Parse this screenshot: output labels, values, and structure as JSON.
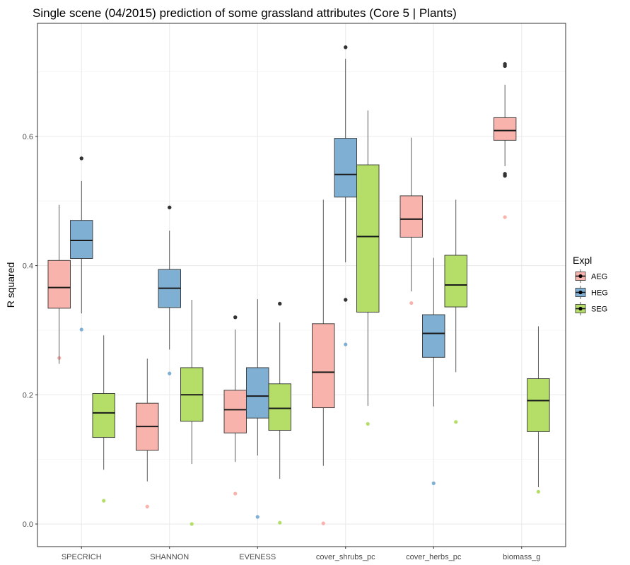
{
  "chart_data": {
    "type": "box",
    "title": "Single scene (04/2015) prediction of some grassland attributes (Core 5 | Plants)",
    "xlabel": "",
    "ylabel": "R squared",
    "ylim": [
      -0.035,
      0.775
    ],
    "yticks": [
      0.0,
      0.2,
      0.4,
      0.6
    ],
    "ytick_labels": [
      "0.0",
      "0.2",
      "0.4",
      "0.6"
    ],
    "grid": true,
    "legend": {
      "title": "Expl",
      "position": "right"
    },
    "categories": [
      "SPECRICH",
      "SHANNON",
      "EVENESS",
      "cover_shrubs_pc",
      "cover_herbs_pc",
      "biomass_g"
    ],
    "series": [
      {
        "name": "AEG",
        "color": "#F8B3AC",
        "boxes": [
          {
            "min": 0.248,
            "q1": 0.334,
            "median": 0.366,
            "q3": 0.408,
            "max": 0.494,
            "outliers": [],
            "points": [
              0.257
            ]
          },
          {
            "min": 0.066,
            "q1": 0.114,
            "median": 0.151,
            "q3": 0.187,
            "max": 0.256,
            "outliers": [],
            "points": [
              0.027
            ]
          },
          {
            "min": 0.096,
            "q1": 0.141,
            "median": 0.177,
            "q3": 0.207,
            "max": 0.301,
            "outliers": [
              0.32
            ],
            "points": [
              0.047
            ]
          },
          {
            "min": 0.09,
            "q1": 0.18,
            "median": 0.235,
            "q3": 0.31,
            "max": 0.502,
            "outliers": [],
            "points": [
              0.001
            ]
          },
          {
            "min": 0.36,
            "q1": 0.444,
            "median": 0.472,
            "q3": 0.508,
            "max": 0.598,
            "outliers": [],
            "points": [
              0.342
            ]
          },
          {
            "min": 0.554,
            "q1": 0.594,
            "median": 0.609,
            "q3": 0.629,
            "max": 0.68,
            "outliers": [
              0.709,
              0.712,
              0.539,
              0.542
            ],
            "points": [
              0.475
            ]
          }
        ]
      },
      {
        "name": "HEG",
        "color": "#7FAFD3",
        "boxes": [
          {
            "min": 0.326,
            "q1": 0.411,
            "median": 0.439,
            "q3": 0.47,
            "max": 0.531,
            "outliers": [
              0.566
            ],
            "points": [
              0.301
            ]
          },
          {
            "min": 0.27,
            "q1": 0.335,
            "median": 0.365,
            "q3": 0.394,
            "max": 0.454,
            "outliers": [
              0.49
            ],
            "points": [
              0.233
            ]
          },
          {
            "min": 0.106,
            "q1": 0.164,
            "median": 0.198,
            "q3": 0.242,
            "max": 0.348,
            "outliers": [],
            "points": [
              0.011
            ]
          },
          {
            "min": 0.405,
            "q1": 0.506,
            "median": 0.541,
            "q3": 0.597,
            "max": 0.72,
            "outliers": [
              0.738,
              0.347
            ],
            "points": [
              0.278
            ]
          },
          {
            "min": 0.182,
            "q1": 0.258,
            "median": 0.295,
            "q3": 0.324,
            "max": 0.412,
            "outliers": [],
            "points": [
              0.063
            ]
          }
        ]
      },
      {
        "name": "SEG",
        "color": "#B4DE68",
        "boxes": [
          {
            "min": 0.084,
            "q1": 0.134,
            "median": 0.172,
            "q3": 0.202,
            "max": 0.292,
            "outliers": [],
            "points": [
              0.036
            ]
          },
          {
            "min": 0.093,
            "q1": 0.159,
            "median": 0.2,
            "q3": 0.242,
            "max": 0.347,
            "outliers": [],
            "points": [
              0.0
            ]
          },
          {
            "min": 0.07,
            "q1": 0.145,
            "median": 0.179,
            "q3": 0.217,
            "max": 0.312,
            "outliers": [
              0.341
            ],
            "points": [
              0.002
            ]
          },
          {
            "min": 0.183,
            "q1": 0.328,
            "median": 0.445,
            "q3": 0.556,
            "max": 0.64,
            "outliers": [],
            "points": [
              0.155
            ]
          },
          {
            "min": 0.235,
            "q1": 0.336,
            "median": 0.37,
            "q3": 0.416,
            "max": 0.502,
            "outliers": [],
            "points": [
              0.158
            ]
          },
          {
            "min": 0.057,
            "q1": 0.143,
            "median": 0.191,
            "q3": 0.225,
            "max": 0.306,
            "outliers": [],
            "points": [
              0.05
            ]
          }
        ]
      }
    ]
  }
}
